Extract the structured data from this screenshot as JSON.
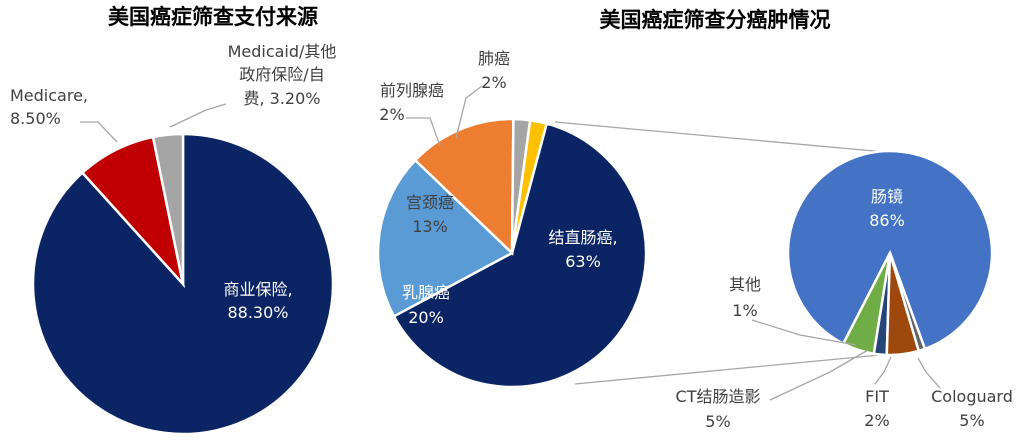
{
  "chart_data": [
    {
      "type": "pie",
      "title": "美国癌症筛查支付来源",
      "slices": [
        {
          "name": "商业保险",
          "value": 88.3,
          "label_line1": "商业保险,",
          "label_line2": "88.30%",
          "color": "#0b2564"
        },
        {
          "name": "Medicare",
          "value": 8.5,
          "label_line1": "Medicare,",
          "label_line2": "8.50%",
          "color": "#c00000"
        },
        {
          "name": "Medicaid/其他政府保险/自费",
          "value": 3.2,
          "label_line1": "Medicaid/其他",
          "label_line2": "政府保险/自",
          "label_line3": "费, 3.20%",
          "color": "#a5a5a5"
        }
      ]
    },
    {
      "type": "pie",
      "title": "美国癌症筛查分癌肿情况",
      "slices": [
        {
          "name": "结直肠癌",
          "value": 63,
          "label_line1": "结直肠癌,",
          "label_line2": "63%",
          "color": "#0b2564"
        },
        {
          "name": "乳腺癌",
          "value": 20,
          "label_line1": "乳腺癌",
          "label_line2": "20%",
          "color": "#5b9bd5"
        },
        {
          "name": "宫颈癌",
          "value": 13,
          "label_line1": "宫颈癌",
          "label_line2": "13%",
          "color": "#ed7d31"
        },
        {
          "name": "前列腺癌",
          "value": 2,
          "label_line1": "前列腺癌",
          "label_line2": "2%",
          "color": "#a5a5a5"
        },
        {
          "name": "肺癌",
          "value": 2,
          "label_line1": "肺癌",
          "label_line2": "2%",
          "color": "#ffc000"
        }
      ]
    },
    {
      "type": "pie",
      "title": "",
      "parent": "结直肠癌",
      "slices": [
        {
          "name": "肠镜",
          "value": 86,
          "label_line1": "肠镜",
          "label_line2": "86%",
          "color": "#4472c4"
        },
        {
          "name": "Cologuard",
          "value": 5,
          "label_line1": "Cologuard",
          "label_line2": "5%",
          "color": "#70ad47"
        },
        {
          "name": "FIT",
          "value": 2,
          "label_line1": "FIT",
          "label_line2": "2%",
          "color": "#264478"
        },
        {
          "name": "CT结肠造影",
          "value": 5,
          "label_line1": "CT结肠造影",
          "label_line2": "5%",
          "color": "#9e480e"
        },
        {
          "name": "其他",
          "value": 1,
          "label_line1": "其他",
          "label_line2": "1%",
          "color": "#636363"
        }
      ]
    }
  ]
}
